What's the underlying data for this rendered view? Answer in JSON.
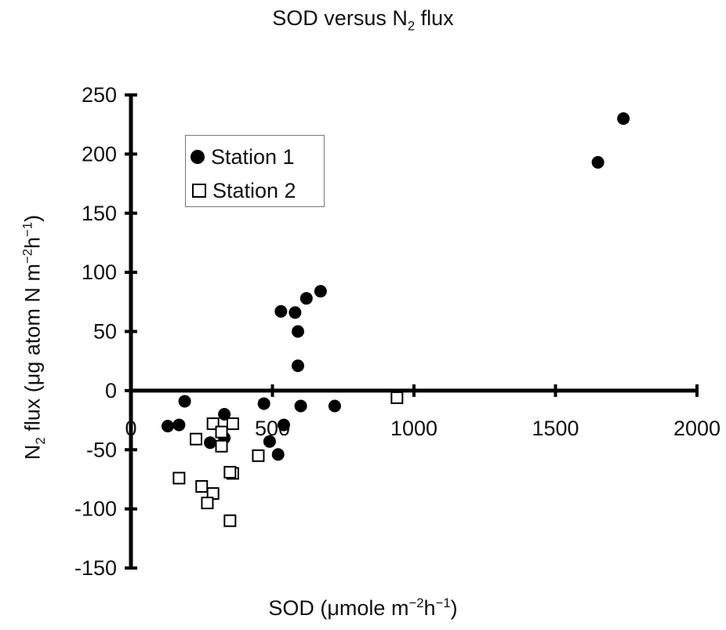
{
  "chart_data": {
    "type": "scatter",
    "title_main": "SOD versus N",
    "title_sub": "2",
    "title_tail": " flux",
    "xlabel_parts": {
      "a": "SOD (",
      "mu": "μ",
      "b": "mole m",
      "sup1": "−2",
      "c": "h",
      "sup2": "−1",
      "d": ")"
    },
    "ylabel_parts": {
      "a": "N",
      "sub": "2",
      "b": " flux (μg atom N m",
      "sup1": "−2",
      "c": "h",
      "sup2": "−1",
      "d": ")"
    },
    "xlim": [
      0,
      2000
    ],
    "ylim": [
      -150,
      250
    ],
    "x_ticks": [
      0,
      500,
      1000,
      1500,
      2000
    ],
    "x_tick_labels": [
      "0",
      "500",
      "1000",
      "1500",
      "2000"
    ],
    "y_ticks": [
      250,
      200,
      150,
      100,
      50,
      0,
      -50,
      -100,
      -150
    ],
    "y_tick_labels": [
      "250",
      "200",
      "150",
      "100",
      "50",
      "0",
      "-50",
      "-100",
      "-150"
    ],
    "grid": false,
    "legend_position": "top-left",
    "series": [
      {
        "name": "Station 1",
        "marker": "filled-circle",
        "color": "#000000",
        "points": [
          [
            1740,
            230
          ],
          [
            1650,
            193
          ],
          [
            670,
            84
          ],
          [
            620,
            78
          ],
          [
            530,
            67
          ],
          [
            580,
            66
          ],
          [
            590,
            50
          ],
          [
            590,
            21
          ],
          [
            130,
            -30
          ],
          [
            170,
            -29
          ],
          [
            190,
            -9
          ],
          [
            330,
            -20
          ],
          [
            280,
            -44
          ],
          [
            330,
            -40
          ],
          [
            470,
            -11
          ],
          [
            540,
            -29
          ],
          [
            490,
            -43
          ],
          [
            520,
            -54
          ],
          [
            600,
            -13
          ],
          [
            720,
            -13
          ]
        ]
      },
      {
        "name": "Station 2",
        "marker": "open-square",
        "color": "#000000",
        "points": [
          [
            940,
            -6
          ],
          [
            290,
            -28
          ],
          [
            360,
            -28
          ],
          [
            320,
            -35
          ],
          [
            230,
            -41
          ],
          [
            320,
            -47
          ],
          [
            450,
            -55
          ],
          [
            170,
            -74
          ],
          [
            360,
            -70
          ],
          [
            350,
            -69
          ],
          [
            250,
            -81
          ],
          [
            290,
            -87
          ],
          [
            270,
            -95
          ],
          [
            350,
            -110
          ]
        ]
      }
    ]
  }
}
